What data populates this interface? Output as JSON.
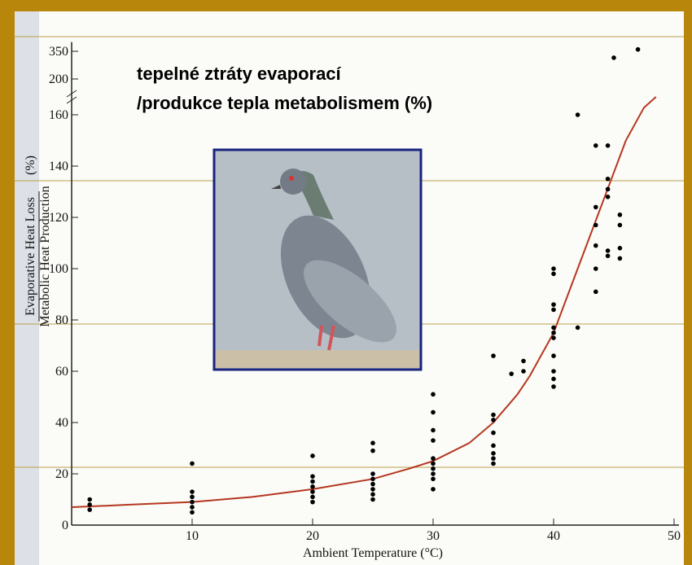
{
  "chart_data": {
    "type": "scatter",
    "title": [
      "tepelné ztráty evaporací",
      "/produkce tepla metabolismem (%)"
    ],
    "ylabel": {
      "numerator": "Evaporative Heat Loss",
      "denominator": "Metabolic Heat Production",
      "unit": "(%)"
    },
    "xlabel": "Ambient Temperature (°C)",
    "xlim": [
      0,
      50
    ],
    "xticks": [
      10,
      20,
      30,
      40,
      50
    ],
    "ylim": [
      0,
      400
    ],
    "yticks": [
      0,
      20,
      40,
      60,
      80,
      100,
      120,
      140,
      160,
      200,
      350
    ],
    "points": {
      "color": "#000000",
      "x": [
        1.5,
        1.5,
        1.5,
        10,
        10,
        10,
        10,
        10,
        10,
        20,
        20,
        20,
        20,
        20,
        20,
        20,
        25,
        25,
        25,
        25,
        25,
        25,
        25,
        25,
        30,
        30,
        30,
        30,
        30,
        30,
        30,
        30,
        30,
        30,
        35,
        35,
        35,
        35,
        35,
        35,
        35,
        35,
        36.5,
        37.5,
        37.5,
        40,
        40,
        40,
        40,
        40,
        40,
        40,
        40,
        40,
        40,
        40,
        42,
        42,
        43.5,
        43.5,
        43.5,
        43.5,
        43.5,
        43.5,
        44.5,
        44.5,
        44.5,
        44.5,
        44.5,
        44.5,
        45.5,
        45.5,
        45.5,
        45.5,
        45,
        47
      ],
      "values": [
        10,
        8,
        6,
        24,
        13,
        11,
        9,
        7,
        5,
        27,
        19,
        17,
        15,
        13,
        11,
        9,
        32,
        29,
        20,
        18,
        16,
        14,
        12,
        10,
        51,
        44,
        37,
        33,
        26,
        24,
        22,
        20,
        18,
        14,
        66,
        43,
        41,
        36,
        31,
        28,
        26,
        24,
        59,
        60,
        64,
        100,
        98,
        86,
        84,
        77,
        75,
        73,
        66,
        60,
        57,
        54,
        160,
        77,
        148,
        124,
        117,
        109,
        100,
        91,
        148,
        135,
        131,
        128,
        107,
        105,
        121,
        117,
        108,
        104,
        315,
        360
      ]
    },
    "curve": {
      "color": "#b5371f",
      "x": [
        0,
        5,
        10,
        15,
        20,
        25,
        28,
        30,
        33,
        35,
        37,
        38,
        40,
        42,
        44,
        46,
        47.5,
        48.5
      ],
      "values": [
        7,
        8,
        9,
        11,
        14,
        18,
        22,
        25,
        32,
        40,
        51,
        58,
        75,
        100,
        125,
        150,
        168,
        180
      ]
    }
  }
}
